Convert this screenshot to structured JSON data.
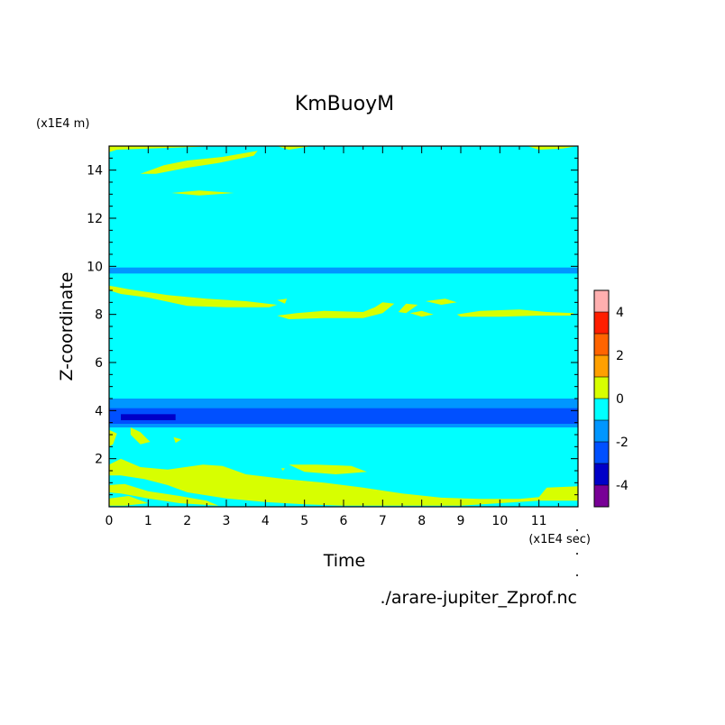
{
  "chart_data": {
    "type": "heatmap",
    "title": "KmBuoyM",
    "xlabel": "Time",
    "ylabel": "Z-coordinate",
    "x_unit": "(x1E4 sec)",
    "y_unit": "(x1E4 m)",
    "source_file": "./arare-jupiter_Zprof.nc",
    "xlim": [
      0,
      12
    ],
    "ylim": [
      0,
      15
    ],
    "x_ticks": [
      "0",
      "1",
      "2",
      "3",
      "4",
      "5",
      "6",
      "7",
      "8",
      "9",
      "10",
      "11"
    ],
    "y_ticks": [
      "2",
      "4",
      "6",
      "8",
      "10",
      "12",
      "14"
    ],
    "colorbar": {
      "range": [
        -5,
        5
      ],
      "tick_labels": [
        "4",
        "2",
        "0",
        "-2",
        "-4"
      ],
      "levels": [
        {
          "min": 4,
          "max": 5,
          "color": "#ffafaf"
        },
        {
          "min": 3,
          "max": 4,
          "color": "#ff1e00"
        },
        {
          "min": 2,
          "max": 3,
          "color": "#ff6400"
        },
        {
          "min": 1,
          "max": 2,
          "color": "#ffa000"
        },
        {
          "min": 0,
          "max": 1,
          "color": "#d7ff00"
        },
        {
          "min": -1,
          "max": 0,
          "color": "#00ffff"
        },
        {
          "min": -2,
          "max": -1,
          "color": "#0096ff"
        },
        {
          "min": -3,
          "max": -2,
          "color": "#0050ff"
        },
        {
          "min": -4,
          "max": -3,
          "color": "#0000c8"
        },
        {
          "min": -5,
          "max": -4,
          "color": "#780096"
        }
      ]
    },
    "background_level": {
      "range": [
        -1,
        0
      ],
      "color": "#00ffff"
    },
    "bands": [
      {
        "level": [
          -2,
          -1
        ],
        "color": "#0096ff",
        "t": [
          0,
          12
        ],
        "z": [
          9.7,
          9.95
        ]
      },
      {
        "level": [
          -2,
          -1
        ],
        "color": "#0096ff",
        "t": [
          0,
          12
        ],
        "z": [
          3.3,
          4.5
        ]
      },
      {
        "level": [
          -3,
          -2
        ],
        "color": "#0050ff",
        "t": [
          0,
          12
        ],
        "z": [
          3.45,
          4.1
        ]
      },
      {
        "level": [
          -4,
          -3
        ],
        "color": "#0000c8",
        "t": [
          0.3,
          1.7
        ],
        "z": [
          3.6,
          3.85
        ]
      }
    ],
    "regions": [
      {
        "level": [
          0,
          1
        ],
        "color": "#d7ff00",
        "outline": [
          [
            0,
            15
          ],
          [
            0,
            14.75
          ],
          [
            0.2,
            14.85
          ],
          [
            1,
            14.9
          ],
          [
            2,
            14.95
          ],
          [
            2.8,
            15
          ]
        ]
      },
      {
        "level": [
          0,
          1
        ],
        "color": "#d7ff00",
        "outline": [
          [
            4.3,
            15
          ],
          [
            4.6,
            14.85
          ],
          [
            5,
            14.95
          ],
          [
            5.2,
            15
          ]
        ]
      },
      {
        "level": [
          0,
          1
        ],
        "color": "#d7ff00",
        "outline": [
          [
            10.7,
            15
          ],
          [
            11,
            14.85
          ],
          [
            11.6,
            14.9
          ],
          [
            12,
            15
          ]
        ]
      },
      {
        "level": [
          0,
          1
        ],
        "color": "#d7ff00",
        "outline": [
          [
            0.8,
            13.85
          ],
          [
            1.4,
            14.2
          ],
          [
            2,
            14.4
          ],
          [
            2.9,
            14.55
          ],
          [
            3.8,
            14.8
          ],
          [
            3.7,
            14.6
          ],
          [
            2.8,
            14.3
          ],
          [
            2,
            14.1
          ],
          [
            1.2,
            13.85
          ]
        ]
      },
      {
        "level": [
          0,
          1
        ],
        "color": "#d7ff00",
        "outline": [
          [
            1.6,
            13.05
          ],
          [
            2.3,
            13.15
          ],
          [
            3.2,
            13.05
          ],
          [
            2.3,
            12.95
          ]
        ]
      },
      {
        "level": [
          0,
          1
        ],
        "color": "#d7ff00",
        "outline": [
          [
            0,
            9.2
          ],
          [
            0.5,
            9.05
          ],
          [
            1.5,
            8.8
          ],
          [
            2.5,
            8.65
          ],
          [
            3.5,
            8.55
          ],
          [
            4.3,
            8.4
          ],
          [
            4.1,
            8.3
          ],
          [
            3,
            8.3
          ],
          [
            2,
            8.35
          ],
          [
            1,
            8.7
          ],
          [
            0.3,
            8.85
          ],
          [
            0,
            9
          ]
        ]
      },
      {
        "level": [
          0,
          1
        ],
        "color": "#d7ff00",
        "outline": [
          [
            4.3,
            8.6
          ],
          [
            4.55,
            8.65
          ],
          [
            4.5,
            8.45
          ]
        ]
      },
      {
        "level": [
          0,
          1
        ],
        "color": "#d7ff00",
        "outline": [
          [
            4.3,
            7.95
          ],
          [
            4.8,
            8.05
          ],
          [
            5.5,
            8.15
          ],
          [
            6.5,
            8.1
          ],
          [
            6.8,
            8.3
          ],
          [
            7,
            8.5
          ],
          [
            7.3,
            8.45
          ],
          [
            7,
            8.05
          ],
          [
            6.5,
            7.85
          ],
          [
            5.5,
            7.85
          ],
          [
            4.6,
            7.8
          ]
        ]
      },
      {
        "level": [
          0,
          1
        ],
        "color": "#d7ff00",
        "outline": [
          [
            7.4,
            8.1
          ],
          [
            7.6,
            8.45
          ],
          [
            7.9,
            8.4
          ],
          [
            7.6,
            8.05
          ]
        ]
      },
      {
        "level": [
          0,
          1
        ],
        "color": "#d7ff00",
        "outline": [
          [
            7.7,
            8.05
          ],
          [
            8,
            8.15
          ],
          [
            8.3,
            8.0
          ],
          [
            8.0,
            7.9
          ]
        ]
      },
      {
        "level": [
          0,
          1
        ],
        "color": "#d7ff00",
        "outline": [
          [
            8.1,
            8.55
          ],
          [
            8.6,
            8.65
          ],
          [
            8.9,
            8.5
          ],
          [
            8.5,
            8.4
          ]
        ]
      },
      {
        "level": [
          0,
          1
        ],
        "color": "#d7ff00",
        "outline": [
          [
            8.9,
            8.0
          ],
          [
            9.5,
            8.15
          ],
          [
            10.5,
            8.2
          ],
          [
            11.2,
            8.1
          ],
          [
            11.9,
            8.05
          ],
          [
            11.8,
            7.95
          ],
          [
            11,
            7.95
          ],
          [
            10,
            7.9
          ],
          [
            9,
            7.9
          ]
        ]
      },
      {
        "level": [
          0,
          1
        ],
        "color": "#d7ff00",
        "outline": [
          [
            0,
            3.2
          ],
          [
            0.2,
            3.05
          ],
          [
            0.1,
            2.6
          ],
          [
            0,
            2.5
          ]
        ]
      },
      {
        "level": [
          0,
          1
        ],
        "color": "#d7ff00",
        "outline": [
          [
            0.55,
            3.3
          ],
          [
            0.8,
            3.1
          ],
          [
            1.05,
            2.7
          ],
          [
            0.8,
            2.6
          ],
          [
            0.55,
            3.0
          ]
        ]
      },
      {
        "level": [
          0,
          1
        ],
        "color": "#d7ff00",
        "outline": [
          [
            1.65,
            2.9
          ],
          [
            1.85,
            2.8
          ],
          [
            1.7,
            2.65
          ]
        ]
      },
      {
        "level": [
          0,
          1
        ],
        "color": "#d7ff00",
        "outline": [
          [
            4.6,
            1.75
          ],
          [
            5.3,
            1.75
          ],
          [
            6.2,
            1.7
          ],
          [
            6.6,
            1.45
          ],
          [
            5.8,
            1.35
          ],
          [
            5.0,
            1.45
          ]
        ]
      },
      {
        "level": [
          0,
          1
        ],
        "color": "#d7ff00",
        "outline": [
          [
            4.4,
            1.6
          ],
          [
            4.5,
            1.6
          ],
          [
            4.45,
            1.5
          ]
        ]
      },
      {
        "level": [
          0,
          1
        ],
        "color": "#d7ff00",
        "outline": [
          [
            0,
            1.75
          ],
          [
            0.3,
            2.0
          ],
          [
            0.8,
            1.65
          ],
          [
            1.5,
            1.55
          ],
          [
            2.4,
            1.75
          ],
          [
            2.9,
            1.7
          ],
          [
            3.5,
            1.35
          ],
          [
            4.5,
            1.15
          ],
          [
            5.5,
            1.0
          ],
          [
            6.5,
            0.8
          ],
          [
            7.5,
            0.55
          ],
          [
            8.5,
            0.38
          ],
          [
            9.5,
            0.33
          ],
          [
            10.5,
            0.33
          ],
          [
            11.0,
            0.4
          ],
          [
            11.2,
            0.8
          ],
          [
            12,
            0.85
          ],
          [
            12,
            0.25
          ],
          [
            11,
            0.25
          ],
          [
            10,
            0.15
          ],
          [
            9,
            0.05
          ],
          [
            8,
            0.05
          ],
          [
            7,
            0.05
          ],
          [
            6,
            0.05
          ],
          [
            5,
            0.1
          ],
          [
            4,
            0.2
          ],
          [
            3,
            0.35
          ],
          [
            2,
            0.6
          ],
          [
            1.5,
            0.9
          ],
          [
            0.9,
            1.15
          ],
          [
            0.3,
            1.3
          ],
          [
            0,
            1.3
          ]
        ]
      },
      {
        "level": [
          0,
          1
        ],
        "color": "#d7ff00",
        "outline": [
          [
            0,
            0.9
          ],
          [
            0.4,
            0.95
          ],
          [
            1,
            0.65
          ],
          [
            1.8,
            0.45
          ],
          [
            2.5,
            0.25
          ],
          [
            2.8,
            0.05
          ],
          [
            1.8,
            0.15
          ],
          [
            1,
            0.35
          ],
          [
            0.3,
            0.55
          ],
          [
            0,
            0.6
          ]
        ]
      },
      {
        "level": [
          0,
          1
        ],
        "color": "#d7ff00",
        "outline": [
          [
            0,
            0.35
          ],
          [
            0.5,
            0.45
          ],
          [
            1,
            0.15
          ],
          [
            0.4,
            0.05
          ],
          [
            0,
            0.05
          ]
        ]
      }
    ],
    "grid": false,
    "legend": "colorbar-right"
  }
}
